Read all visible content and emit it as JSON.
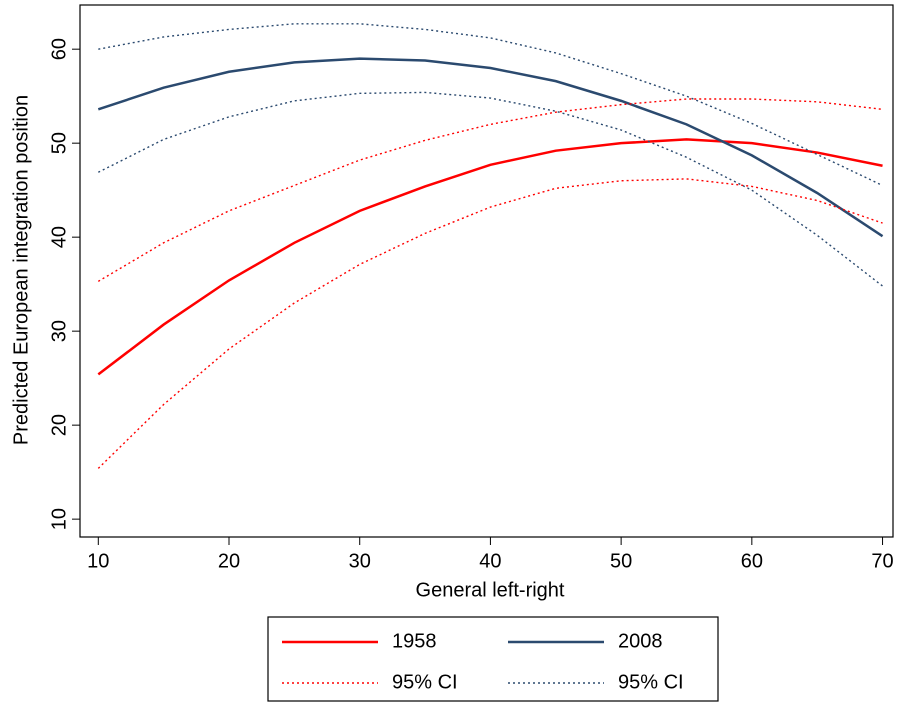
{
  "chart_data": {
    "type": "line",
    "x_label": "General left-right",
    "y_label": "Predicted European integration position",
    "x": [
      10,
      15,
      20,
      25,
      30,
      35,
      40,
      45,
      50,
      55,
      60,
      65,
      70
    ],
    "xlim": [
      8.6,
      70.8
    ],
    "ylim": [
      8.1,
      64.7
    ],
    "xticks": [
      10,
      20,
      30,
      40,
      50,
      60,
      70
    ],
    "yticks": [
      10,
      20,
      30,
      40,
      50,
      60
    ],
    "grid": false,
    "series": [
      {
        "name": "1958",
        "color": "#ff0000",
        "dashed": false,
        "values": [
          25.4,
          30.7,
          35.4,
          39.4,
          42.8,
          45.4,
          47.7,
          49.2,
          50.0,
          50.4,
          50.0,
          49.0,
          47.6
        ]
      },
      {
        "name": "2008",
        "color": "#2b4a6f",
        "dashed": false,
        "values": [
          53.6,
          55.9,
          57.6,
          58.6,
          59.0,
          58.8,
          58.0,
          56.6,
          54.5,
          52.0,
          48.7,
          44.7,
          40.1
        ]
      },
      {
        "name": "95% CI",
        "color": "#ff0000",
        "dashed": true,
        "lower": [
          15.4,
          22.2,
          28.1,
          33.0,
          37.1,
          40.4,
          43.2,
          45.2,
          46.0,
          46.2,
          45.4,
          43.9,
          41.5
        ],
        "upper": [
          35.3,
          39.4,
          42.8,
          45.5,
          48.2,
          50.3,
          52.0,
          53.3,
          54.1,
          54.7,
          54.7,
          54.4,
          53.6
        ]
      },
      {
        "name": "95% CI",
        "color": "#2b4a6f",
        "dashed": true,
        "lower": [
          46.9,
          50.4,
          52.8,
          54.5,
          55.3,
          55.4,
          54.8,
          53.4,
          51.4,
          48.5,
          45.0,
          40.2,
          34.8
        ],
        "upper": [
          60.0,
          61.3,
          62.1,
          62.7,
          62.7,
          62.1,
          61.2,
          59.6,
          57.4,
          55.0,
          52.1,
          48.8,
          45.5
        ]
      }
    ]
  }
}
